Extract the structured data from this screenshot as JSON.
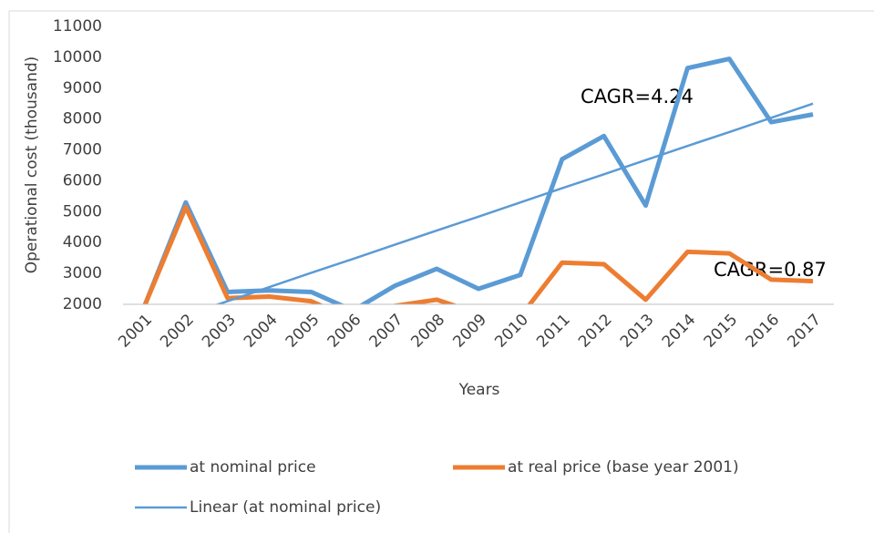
{
  "chart_data": {
    "type": "line",
    "y_axis_label": "Operational cost (thousand)",
    "x_axis_label": "Years",
    "categories": [
      "2001",
      "2002",
      "2003",
      "2004",
      "2005",
      "2006",
      "2007",
      "2008",
      "2009",
      "2010",
      "2011",
      "2012",
      "2013",
      "2014",
      "2015",
      "2016",
      "2017"
    ],
    "series": [
      {
        "name": "at nominal price",
        "color": "#5b9bd5",
        "line_width": 5,
        "values": [
          1900,
          5300,
          2400,
          2450,
          2400,
          1800,
          2600,
          3150,
          2500,
          2950,
          6700,
          7450,
          5200,
          9650,
          9950,
          7900,
          8150
        ]
      },
      {
        "name": "at real price (base year 2001)",
        "color": "#ed7d31",
        "line_width": 5,
        "values": [
          1900,
          5150,
          2200,
          2250,
          2100,
          1500,
          1950,
          2150,
          1700,
          1600,
          3350,
          3300,
          2150,
          3700,
          3650,
          2800,
          2750
        ]
      },
      {
        "name": "Linear (at nominal price)",
        "color": "#5b9bd5",
        "line_width": 2.5,
        "values": [
          1190,
          1650,
          2100,
          2560,
          3020,
          3470,
          3930,
          4390,
          4840,
          5300,
          5760,
          6210,
          6670,
          7130,
          7580,
          8040,
          8500
        ]
      }
    ],
    "annotations": [
      "CAGR=4.24",
      "CAGR=0.87"
    ],
    "ylim": [
      2000,
      11000
    ],
    "yticks": [
      2000,
      3000,
      4000,
      5000,
      6000,
      7000,
      8000,
      9000,
      10000,
      11000
    ],
    "grid": false,
    "legend": "bottom"
  }
}
